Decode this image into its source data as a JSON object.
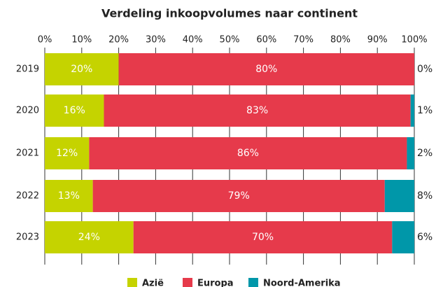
{
  "chart_data": {
    "type": "stacked_barh",
    "title": "Verdeling inkoopvolumes naar continent",
    "categories": [
      "2019",
      "2020",
      "2021",
      "2022",
      "2023"
    ],
    "series": [
      {
        "name": "Azië",
        "color": "#c5d300",
        "values": [
          20,
          16,
          12,
          13,
          24
        ],
        "value_labels": [
          "20%",
          "16%",
          "12%",
          "13%",
          "24%"
        ]
      },
      {
        "name": "Europa",
        "color": "#e63a4b",
        "values": [
          80,
          83,
          86,
          79,
          70
        ],
        "value_labels": [
          "80%",
          "83%",
          "86%",
          "79%",
          "70%"
        ]
      },
      {
        "name": "Noord-Amerika",
        "color": "#0097a9",
        "values": [
          0,
          1,
          2,
          8,
          6
        ],
        "value_labels": [
          "0%",
          "1%",
          "2%",
          "8%",
          "6%"
        ]
      }
    ],
    "xlim": [
      0,
      100
    ],
    "xticks": [
      {
        "value": 0,
        "label": "0%"
      },
      {
        "value": 10,
        "label": "10%"
      },
      {
        "value": 20,
        "label": "20%"
      },
      {
        "value": 30,
        "label": "30%"
      },
      {
        "value": 40,
        "label": "40%"
      },
      {
        "value": 50,
        "label": "50%"
      },
      {
        "value": 60,
        "label": "60%"
      },
      {
        "value": 70,
        "label": "70%"
      },
      {
        "value": 80,
        "label": "80%"
      },
      {
        "value": 90,
        "label": "90%"
      },
      {
        "value": 100,
        "label": "100%"
      }
    ],
    "grid": true
  }
}
